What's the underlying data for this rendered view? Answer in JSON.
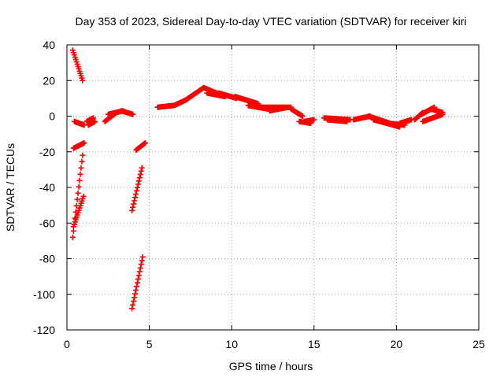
{
  "chart_data": {
    "type": "scatter",
    "title": "Day 353 of 2023, Sidereal Day-to-day VTEC variation (SDTVAR) for receiver kiri",
    "xlabel": "GPS time / hours",
    "ylabel": "SDTVAR / TECUs",
    "xlim": [
      0,
      25
    ],
    "ylim": [
      -120,
      40
    ],
    "xticks": [
      0,
      5,
      10,
      15,
      20,
      25
    ],
    "yticks": [
      -120,
      -100,
      -80,
      -60,
      -40,
      -20,
      0,
      20,
      40
    ],
    "grid": true,
    "marker": "+",
    "series": [
      {
        "name": "SDTVAR",
        "color": "#ff0000",
        "segments": [
          {
            "x0": 0.35,
            "x1": 0.95,
            "y": [
              37,
              20
            ]
          },
          {
            "x0": 0.45,
            "x1": 1.05,
            "y": [
              -3,
              -5
            ]
          },
          {
            "x0": 0.4,
            "x1": 1.05,
            "y": [
              -18,
              -15
            ]
          },
          {
            "x0": 0.35,
            "x1": 0.95,
            "y": [
              -68,
              -22
            ]
          },
          {
            "x0": 0.4,
            "x1": 1.0,
            "y": [
              -62,
              -45
            ]
          },
          {
            "x0": 1.2,
            "x1": 1.6,
            "y": [
              -3,
              -1
            ]
          },
          {
            "x0": 1.3,
            "x1": 1.7,
            "y": [
              -5,
              -3
            ]
          },
          {
            "x0": 2.3,
            "x1": 3.0,
            "y": [
              -3,
              2
            ]
          },
          {
            "x0": 2.5,
            "x1": 3.4,
            "y": [
              1,
              3
            ]
          },
          {
            "x0": 3.3,
            "x1": 4.0,
            "y": [
              3,
              1
            ]
          },
          {
            "x0": 3.95,
            "x1": 4.6,
            "y": [
              -108,
              -79
            ]
          },
          {
            "x0": 3.95,
            "x1": 4.55,
            "y": [
              -53,
              -29
            ]
          },
          {
            "x0": 4.2,
            "x1": 4.75,
            "y": [
              -19,
              -15
            ]
          },
          {
            "x0": 5.5,
            "x1": 6.5,
            "y": [
              5,
              6
            ]
          },
          {
            "x0": 6.5,
            "x1": 7.2,
            "y": [
              6,
              9
            ]
          },
          {
            "x0": 7.2,
            "x1": 8.3,
            "y": [
              9,
              16
            ]
          },
          {
            "x0": 8.3,
            "x1": 9.3,
            "y": [
              16,
              12
            ]
          },
          {
            "x0": 8.5,
            "x1": 9.6,
            "y": [
              13,
              11
            ]
          },
          {
            "x0": 9.2,
            "x1": 10.3,
            "y": [
              13,
              10
            ]
          },
          {
            "x0": 10.2,
            "x1": 11.6,
            "y": [
              11,
              7
            ]
          },
          {
            "x0": 11.0,
            "x1": 12.2,
            "y": [
              6,
              4
            ]
          },
          {
            "x0": 11.6,
            "x1": 13.6,
            "y": [
              5,
              5
            ]
          },
          {
            "x0": 12.3,
            "x1": 13.4,
            "y": [
              3,
              5
            ]
          },
          {
            "x0": 13.6,
            "x1": 14.3,
            "y": [
              4,
              0
            ]
          },
          {
            "x0": 14.1,
            "x1": 14.8,
            "y": [
              -3,
              -4
            ]
          },
          {
            "x0": 14.4,
            "x1": 15.0,
            "y": [
              -3,
              -2
            ]
          },
          {
            "x0": 15.6,
            "x1": 17.2,
            "y": [
              -1,
              -2
            ]
          },
          {
            "x0": 15.8,
            "x1": 17.0,
            "y": [
              -2,
              -3
            ]
          },
          {
            "x0": 17.4,
            "x1": 18.4,
            "y": [
              -2,
              0
            ]
          },
          {
            "x0": 18.3,
            "x1": 19.6,
            "y": [
              0,
              -4
            ]
          },
          {
            "x0": 18.6,
            "x1": 20.2,
            "y": [
              -2,
              -6
            ]
          },
          {
            "x0": 19.5,
            "x1": 20.5,
            "y": [
              -4,
              -5
            ]
          },
          {
            "x0": 20.2,
            "x1": 20.9,
            "y": [
              -4,
              -2
            ]
          },
          {
            "x0": 21.1,
            "x1": 21.6,
            "y": [
              -2,
              2
            ]
          },
          {
            "x0": 21.5,
            "x1": 22.3,
            "y": [
              1,
              5
            ]
          },
          {
            "x0": 21.6,
            "x1": 22.8,
            "y": [
              -3,
              1
            ]
          },
          {
            "x0": 22.1,
            "x1": 22.8,
            "y": [
              4,
              2
            ]
          }
        ]
      }
    ]
  }
}
